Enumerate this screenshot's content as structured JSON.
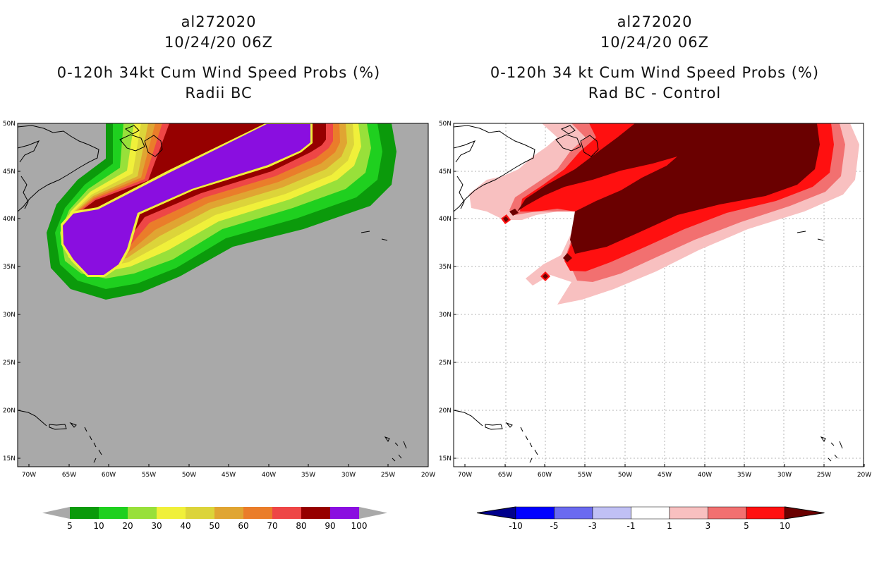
{
  "left_panel": {
    "title_line1": "al272020",
    "title_line2": "10/24/20 06Z",
    "title_line3": "0-120h 34kt Cum Wind Speed Probs (%)",
    "title_line4": "Radii BC",
    "colors": {
      "background": "#a9a9a9",
      "c5": "#0b9a0b",
      "c10": "#1fd01f",
      "c20": "#98e03a",
      "c30": "#f0f03a",
      "c40": "#dcd43a",
      "c50": "#e0a532",
      "c60": "#ea7d2a",
      "c70": "#ee4646",
      "c80": "#960000",
      "c90": "#8a0ee0"
    },
    "colorbar": [
      "5",
      "10",
      "20",
      "30",
      "40",
      "50",
      "60",
      "70",
      "80",
      "90",
      "100"
    ]
  },
  "right_panel": {
    "title_line1": "al272020",
    "title_line2": "10/24/20 06Z",
    "title_line3": "0-120h 34 kt Cum Wind Speed Probs (%)",
    "title_line4": "Rad BC - Control",
    "colors": {
      "background": "#ffffff",
      "p1": "#f8c0c0",
      "p3": "#f27070",
      "p5": "#ff1010",
      "p10": "#6a0000",
      "n_inf": "#00008c",
      "n10": "#0000ff",
      "n5": "#6a6af0",
      "n3": "#c0c0f5"
    },
    "colorbar": [
      "-10",
      "-5",
      "-3",
      "-1",
      "1",
      "3",
      "5",
      "10"
    ]
  },
  "axes": {
    "lat_labels": [
      "50N",
      "45N",
      "40N",
      "35N",
      "30N",
      "25N",
      "20N",
      "15N"
    ],
    "lon_labels": [
      "70W",
      "65W",
      "60W",
      "55W",
      "50W",
      "45W",
      "40W",
      "35W",
      "30W",
      "25W",
      "20W"
    ]
  }
}
